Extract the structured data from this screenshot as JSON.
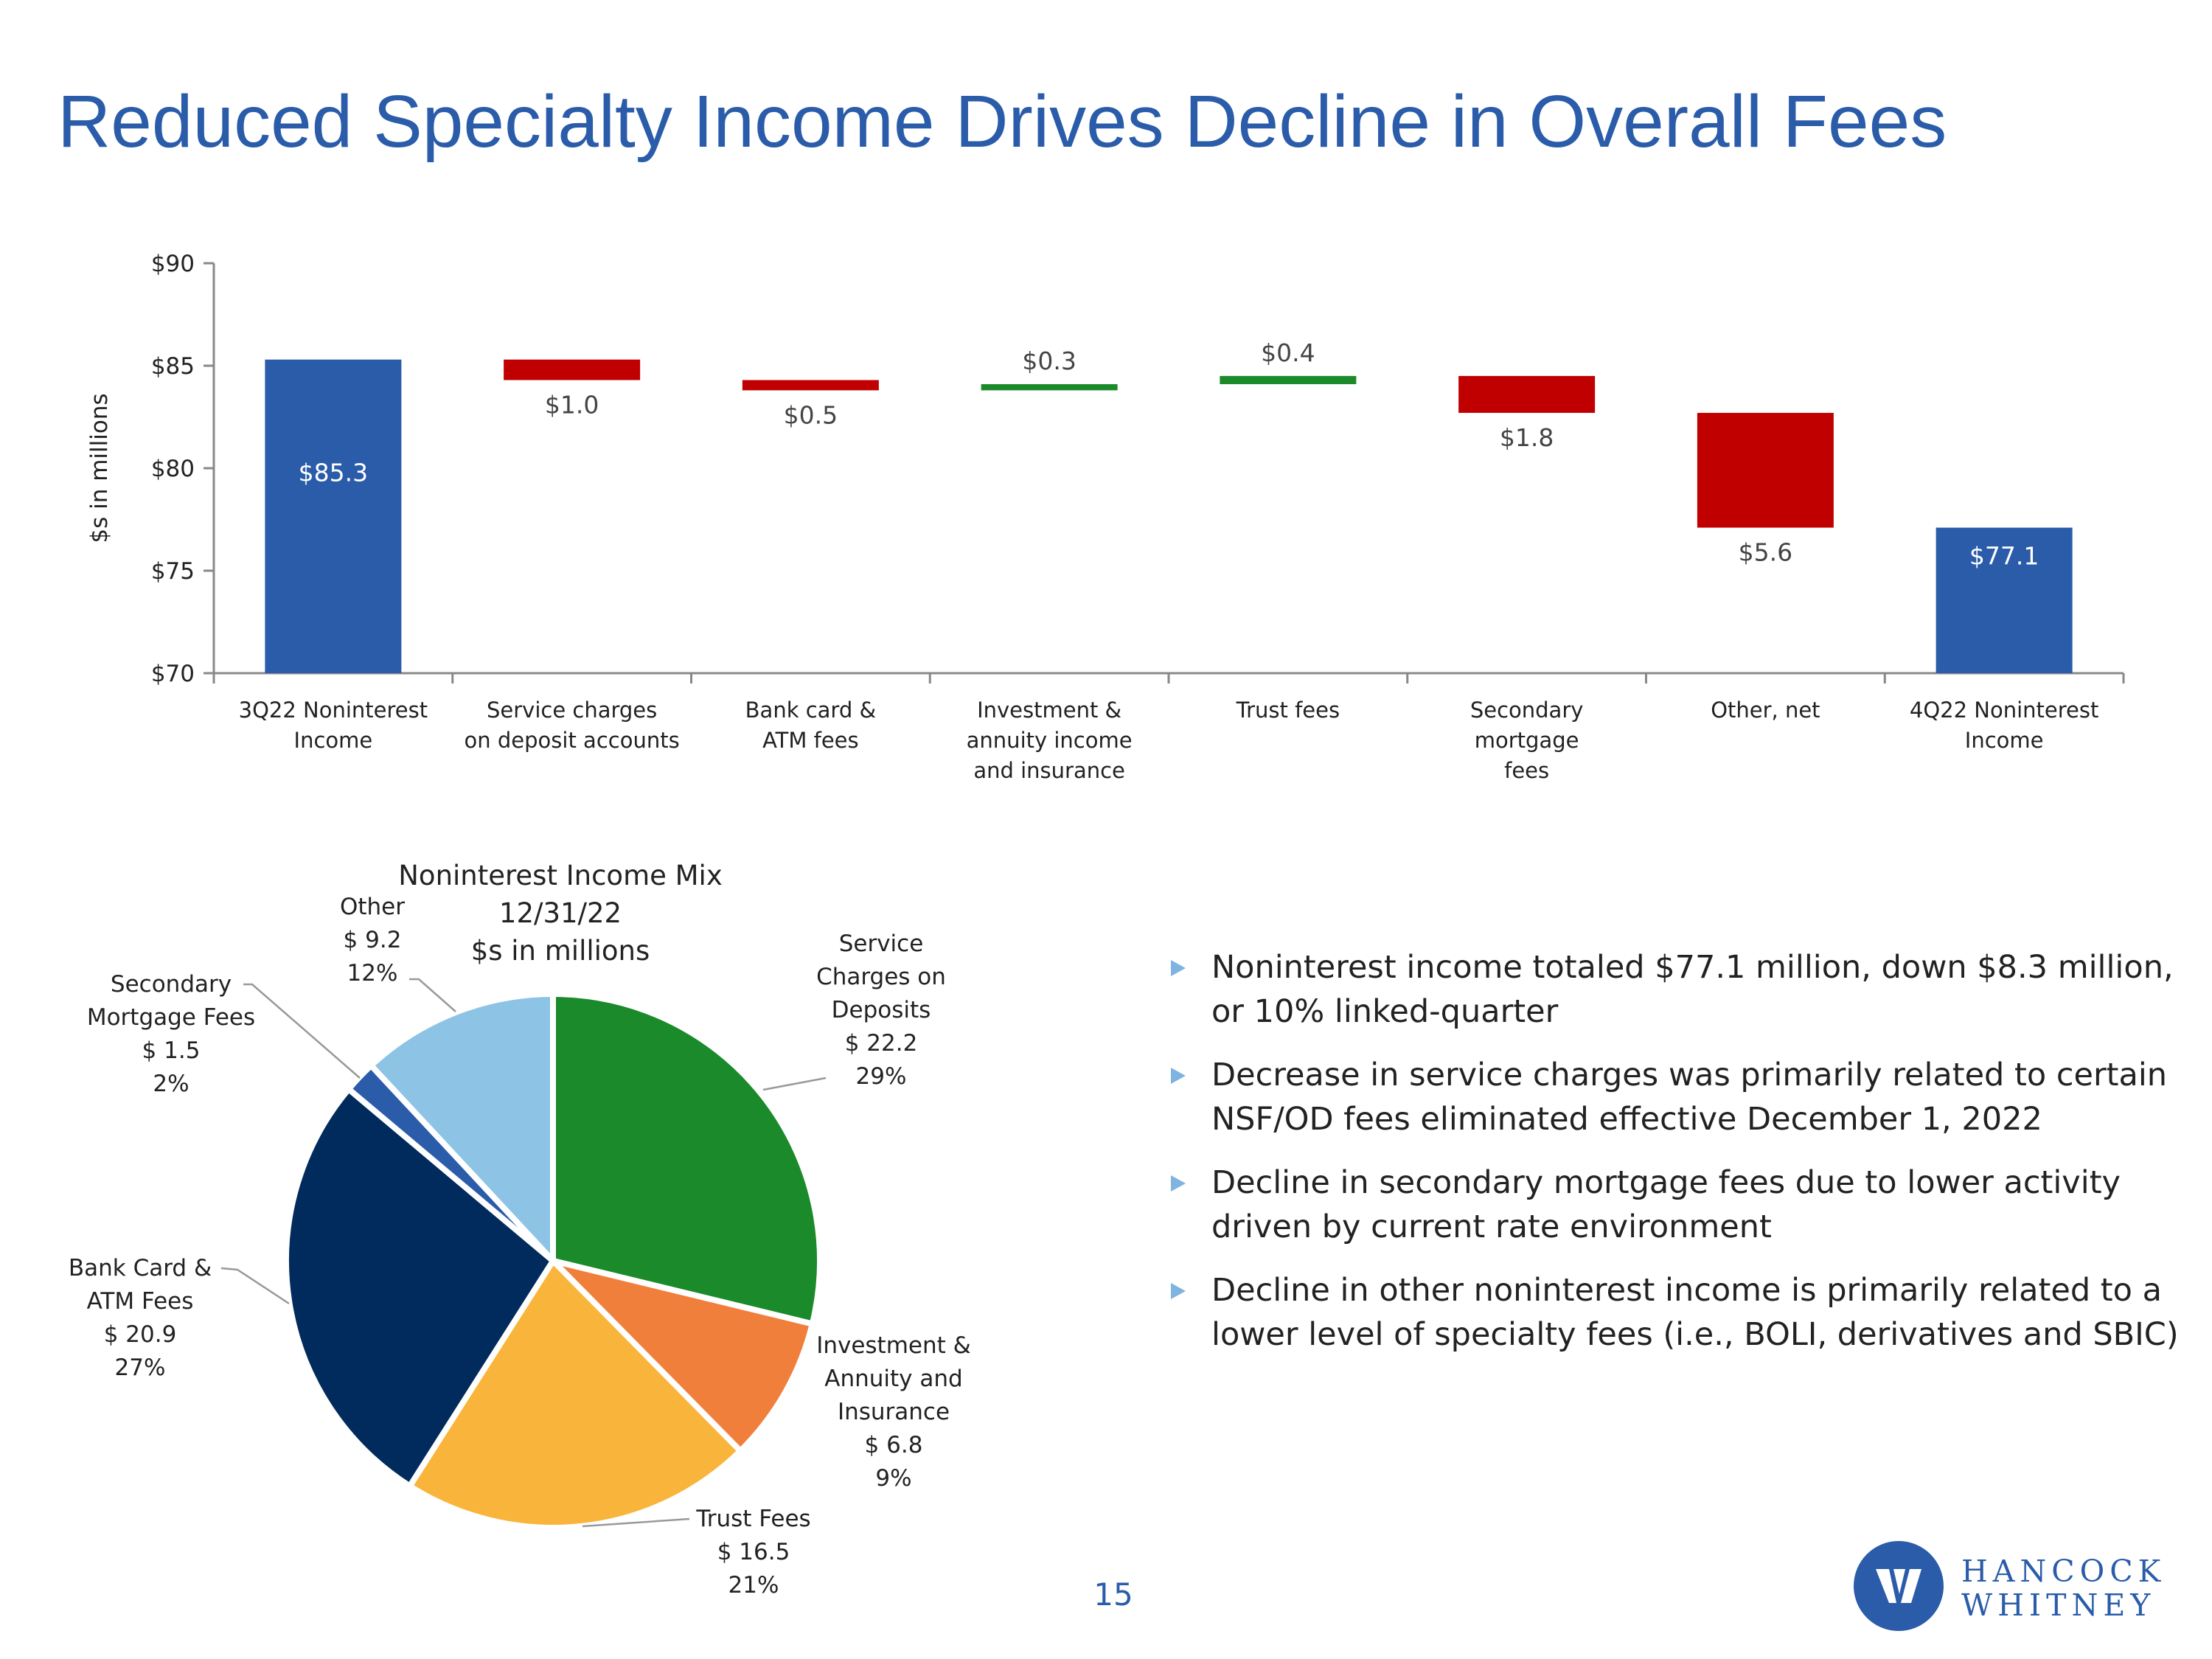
{
  "title": "Reduced Specialty Income Drives Decline in Overall Fees",
  "page_number": "15",
  "brand": {
    "line1": "HANCOCK",
    "line2": "WHITNEY",
    "color": "#2a5caa"
  },
  "colors": {
    "total": "#2a5caa",
    "decrease": "#c00000",
    "increase": "#1b8a2a"
  },
  "chart_data": [
    {
      "type": "bar",
      "subtype": "waterfall",
      "ylabel": "$s in millions",
      "ylim": [
        70,
        90
      ],
      "yticks": [
        70,
        75,
        80,
        85,
        90
      ],
      "ytick_labels": [
        "$70",
        "$75",
        "$80",
        "$85",
        "$90"
      ],
      "categories": [
        [
          "3Q22 Noninterest",
          "Income"
        ],
        [
          "Service charges",
          "on deposit accounts"
        ],
        [
          "Bank card &",
          "ATM fees"
        ],
        [
          "Investment &",
          "annuity income",
          "and insurance"
        ],
        [
          "Trust fees"
        ],
        [
          "Secondary",
          "mortgage",
          "fees"
        ],
        [
          "Other, net"
        ],
        [
          "4Q22 Noninterest",
          "Income"
        ]
      ],
      "bars": [
        {
          "kind": "total",
          "start": 70,
          "end": 85.3,
          "label": "$85.3"
        },
        {
          "kind": "decrease",
          "start": 85.3,
          "end": 84.3,
          "label": "$1.0"
        },
        {
          "kind": "decrease",
          "start": 84.3,
          "end": 83.8,
          "label": "$0.5"
        },
        {
          "kind": "increase",
          "start": 83.8,
          "end": 84.1,
          "label": "$0.3"
        },
        {
          "kind": "increase",
          "start": 84.1,
          "end": 84.5,
          "label": "$0.4"
        },
        {
          "kind": "decrease",
          "start": 84.5,
          "end": 82.7,
          "label": "$1.8"
        },
        {
          "kind": "decrease",
          "start": 82.7,
          "end": 77.1,
          "label": "$5.6"
        },
        {
          "kind": "total",
          "start": 70,
          "end": 77.1,
          "label": "$77.1"
        }
      ]
    },
    {
      "type": "pie",
      "title": [
        "Noninterest Income Mix",
        "12/31/22",
        "$s in millions"
      ],
      "slices": [
        {
          "name": [
            "Service",
            "Charges on",
            "Deposits"
          ],
          "value": 22.2,
          "value_label": "$ 22.2",
          "pct": "29%",
          "color": "#1b8a2a"
        },
        {
          "name": [
            "Investment &",
            "Annuity and",
            "Insurance"
          ],
          "value": 6.8,
          "value_label": "$ 6.8",
          "pct": "9%",
          "color": "#f07f3c"
        },
        {
          "name": [
            "Trust Fees"
          ],
          "value": 16.5,
          "value_label": "$ 16.5",
          "pct": "21%",
          "color": "#f9b53b"
        },
        {
          "name": [
            "Bank Card &",
            "ATM Fees"
          ],
          "value": 20.9,
          "value_label": "$ 20.9",
          "pct": "27%",
          "color": "#002b5c"
        },
        {
          "name": [
            "Secondary",
            "Mortgage Fees"
          ],
          "value": 1.5,
          "value_label": "$ 1.5",
          "pct": "2%",
          "color": "#2a5caa"
        },
        {
          "name": [
            "Other"
          ],
          "value": 9.2,
          "value_label": "$ 9.2",
          "pct": "12%",
          "color": "#8dc4e6"
        }
      ]
    }
  ],
  "bullets": [
    "Noninterest income totaled $77.1 million, down $8.3 million, or 10% linked-quarter",
    "Decrease in service charges was primarily related to certain NSF/OD fees eliminated effective December 1, 2022",
    "Decline in secondary mortgage fees due to lower activity driven by current rate environment",
    "Decline in other noninterest income is primarily related to a lower level of specialty fees (i.e., BOLI, derivatives and SBIC)"
  ]
}
